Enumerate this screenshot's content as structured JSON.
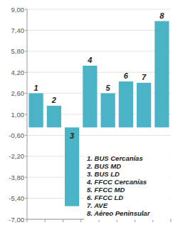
{
  "chart_data": {
    "type": "bar",
    "categories": [
      "1",
      "2",
      "3",
      "4",
      "5",
      "6",
      "7",
      "8"
    ],
    "values": [
      2.6,
      1.65,
      -6.0,
      4.7,
      2.6,
      3.5,
      3.4,
      8.1
    ],
    "color": "#4bb3c6",
    "ylim": [
      -7,
      9
    ],
    "yticks": [
      {
        "value": 9,
        "label": "9,00"
      },
      {
        "value": 7.4,
        "label": "7,40"
      },
      {
        "value": 5.8,
        "label": "5,80"
      },
      {
        "value": 4.2,
        "label": "4,20"
      },
      {
        "value": 2.6,
        "label": "2,60"
      },
      {
        "value": 1,
        "label": "1,00"
      },
      {
        "value": -0.6,
        "label": "-0,60"
      },
      {
        "value": -2.2,
        "label": "-2,20"
      },
      {
        "value": -3.8,
        "label": "-3,80"
      },
      {
        "value": -5.4,
        "label": "-5,40"
      },
      {
        "value": -7,
        "label": "-7,00"
      }
    ],
    "grid": true,
    "tick_labels": "y",
    "annotations": [
      "1. BUS Cercanías",
      "2. BUS MD",
      "3. BUS LD",
      "4. FFCC Cercanías",
      "5. FFCC MD",
      "6. FFCC LD",
      "7. AVE",
      "8. Aéreo Peninsular"
    ]
  }
}
